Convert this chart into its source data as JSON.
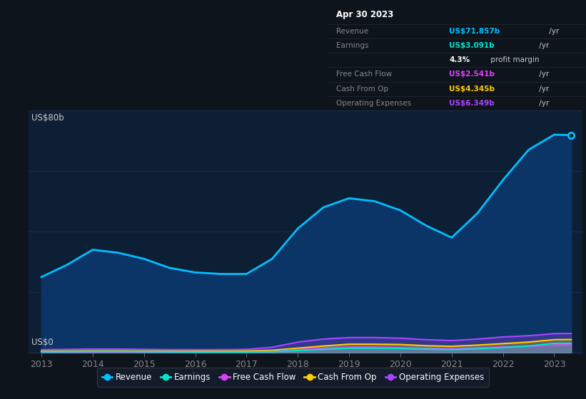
{
  "bg_color": "#0e141c",
  "chart_bg_color": "#0d1f35",
  "grid_color": "#1e3050",
  "ylabel_text": "US$80b",
  "y0_text": "US$0",
  "tooltip": {
    "date": "Apr 30 2023",
    "rows": [
      {
        "label": "Revenue",
        "value": "US$71.857b",
        "suffix": " /yr",
        "value_color": "#00bfff",
        "label_color": "#888888"
      },
      {
        "label": "Earnings",
        "value": "US$3.091b",
        "suffix": " /yr",
        "value_color": "#00e5cc",
        "label_color": "#888888"
      },
      {
        "label": "",
        "value": "4.3%",
        "suffix": " profit margin",
        "value_color": "#ffffff",
        "label_color": ""
      },
      {
        "label": "Free Cash Flow",
        "value": "US$2.541b",
        "suffix": " /yr",
        "value_color": "#e040fb",
        "label_color": "#888888"
      },
      {
        "label": "Cash From Op",
        "value": "US$4.345b",
        "suffix": " /yr",
        "value_color": "#ffcc00",
        "label_color": "#888888"
      },
      {
        "label": "Operating Expenses",
        "value": "US$6.349b",
        "suffix": " /yr",
        "value_color": "#aa44ff",
        "label_color": "#888888"
      }
    ]
  },
  "x_years": [
    2013,
    2013.5,
    2014,
    2014.5,
    2015,
    2015.5,
    2016,
    2016.5,
    2017,
    2017.5,
    2018,
    2018.5,
    2019,
    2019.5,
    2020,
    2020.5,
    2021,
    2021.5,
    2022,
    2022.5,
    2023,
    2023.33
  ],
  "revenue": [
    25,
    29,
    34,
    33,
    31,
    28,
    26.5,
    26,
    26,
    31,
    41,
    48,
    51,
    50,
    47,
    42,
    38,
    46,
    57,
    67,
    72,
    71.857
  ],
  "earnings": [
    0.3,
    0.35,
    0.4,
    0.4,
    0.35,
    0.3,
    0.25,
    0.25,
    0.25,
    0.35,
    0.7,
    1.1,
    1.5,
    1.5,
    1.4,
    1.2,
    1.0,
    1.3,
    1.7,
    2.2,
    3.1,
    3.091
  ],
  "free_cash_flow": [
    0.2,
    0.2,
    0.25,
    0.25,
    0.2,
    0.15,
    0.15,
    0.15,
    0.2,
    0.35,
    1.0,
    1.5,
    1.8,
    1.8,
    1.7,
    1.5,
    1.3,
    1.6,
    1.9,
    2.1,
    2.5,
    2.541
  ],
  "cash_from_op": [
    0.5,
    0.55,
    0.6,
    0.6,
    0.55,
    0.5,
    0.5,
    0.5,
    0.55,
    0.8,
    1.5,
    2.2,
    2.8,
    2.8,
    2.7,
    2.3,
    2.1,
    2.5,
    3.0,
    3.5,
    4.3,
    4.345
  ],
  "operating_expenses": [
    1.0,
    1.1,
    1.2,
    1.2,
    1.1,
    1.0,
    1.0,
    1.0,
    1.1,
    1.8,
    3.5,
    4.5,
    5.0,
    5.0,
    4.8,
    4.3,
    4.0,
    4.5,
    5.2,
    5.6,
    6.3,
    6.349
  ],
  "revenue_color": "#00bfff",
  "earnings_color": "#00e5cc",
  "free_cash_flow_color": "#e040fb",
  "cash_from_op_color": "#ffcc00",
  "operating_expenses_color": "#aa44ff",
  "revenue_fill_color": "#0a3566",
  "x_ticks": [
    2013,
    2014,
    2015,
    2016,
    2017,
    2018,
    2019,
    2020,
    2021,
    2022,
    2023
  ],
  "x_tick_labels": [
    "2013",
    "2014",
    "2015",
    "2016",
    "2017",
    "2018",
    "2019",
    "2020",
    "2021",
    "2022",
    "2023"
  ],
  "ylim": [
    0,
    80
  ],
  "xlim_min": 2012.75,
  "xlim_max": 2023.55,
  "legend": [
    {
      "label": "Revenue",
      "color": "#00bfff"
    },
    {
      "label": "Earnings",
      "color": "#00e5cc"
    },
    {
      "label": "Free Cash Flow",
      "color": "#e040fb"
    },
    {
      "label": "Cash From Op",
      "color": "#ffcc00"
    },
    {
      "label": "Operating Expenses",
      "color": "#aa44ff"
    }
  ]
}
